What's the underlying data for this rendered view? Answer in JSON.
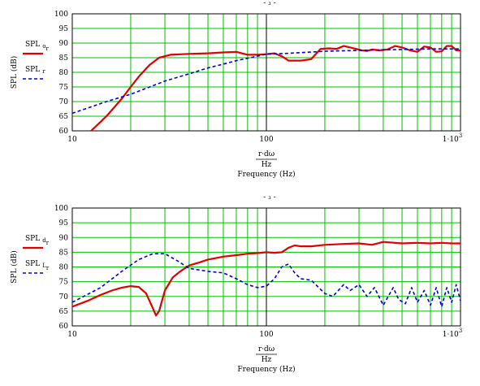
{
  "chart_data": [
    {
      "type": "line",
      "x_scale": "log",
      "xlim": [
        10,
        1000
      ],
      "ylim": [
        60,
        100
      ],
      "grid": true,
      "x_ticks": [
        "10",
        "100"
      ],
      "x_tick_last": {
        "base": "1·10",
        "exp": "3"
      },
      "y_ticks": [
        "60",
        "65",
        "70",
        "75",
        "80",
        "85",
        "90",
        "95",
        "100"
      ],
      "xlabel_top": "r·dω",
      "xlabel_mid": "Hz",
      "xlabel_bottom": "Frequency (Hz)",
      "ylabel": "SPL (dB)",
      "series": [
        {
          "name": "SPL",
          "name_sub": "o",
          "name_subsub": "r",
          "color": "#dd0000",
          "style": "solid",
          "x": [
            12.5,
            15,
            18,
            20,
            22,
            25,
            28,
            32,
            40,
            50,
            60,
            70,
            80,
            90,
            100,
            110,
            120,
            130,
            150,
            170,
            190,
            210,
            230,
            250,
            270,
            290,
            310,
            330,
            350,
            380,
            420,
            460,
            500,
            550,
            600,
            650,
            700,
            750,
            800,
            850,
            900,
            950,
            1000
          ],
          "y": [
            60,
            65,
            71,
            75,
            78.5,
            82.5,
            85,
            86,
            86.3,
            86.5,
            86.8,
            87,
            86,
            86,
            86.2,
            86.5,
            85.5,
            84,
            84,
            84.5,
            88,
            88.2,
            88,
            89,
            88.5,
            88,
            87.5,
            87.3,
            87.8,
            87.5,
            87.8,
            89,
            88.5,
            87.5,
            87,
            88.8,
            88.5,
            87,
            87.2,
            89,
            89,
            87.5,
            87.5
          ]
        },
        {
          "name": "SPL",
          "name_sub": "r",
          "name_subsub": "",
          "color": "#0000cc",
          "style": "dashed",
          "x": [
            10,
            15,
            20,
            30,
            40,
            50,
            60,
            70,
            80,
            100,
            130,
            200,
            300,
            500,
            700,
            1000
          ],
          "y": [
            66,
            70,
            72.5,
            77,
            79.5,
            81.5,
            82.8,
            84,
            84.8,
            86.2,
            86.5,
            87.2,
            87.5,
            87.8,
            88,
            88
          ]
        }
      ]
    },
    {
      "type": "line",
      "x_scale": "log",
      "xlim": [
        10,
        1000
      ],
      "ylim": [
        60,
        100
      ],
      "grid": true,
      "x_ticks": [
        "10",
        "100"
      ],
      "x_tick_last": {
        "base": "1·10",
        "exp": "3"
      },
      "y_ticks": [
        "60",
        "65",
        "70",
        "75",
        "80",
        "85",
        "90",
        "95",
        "100"
      ],
      "xlabel_top": "r·dω",
      "xlabel_mid": "Hz",
      "xlabel_bottom": "Frequency (Hz)",
      "ylabel": "SPL (dB)",
      "series": [
        {
          "name": "SPL",
          "name_sub": "d",
          "name_subsub": "r",
          "color": "#dd0000",
          "style": "solid",
          "x": [
            10,
            12,
            14,
            16,
            18,
            20,
            22,
            24,
            26,
            27,
            28,
            30,
            33,
            36,
            40,
            45,
            50,
            60,
            70,
            80,
            90,
            100,
            110,
            120,
            130,
            140,
            150,
            170,
            200,
            250,
            300,
            350,
            400,
            500,
            600,
            700,
            800,
            900,
            1000
          ],
          "y": [
            66.5,
            68.5,
            70.5,
            72,
            73,
            73.5,
            73.2,
            71,
            66,
            63.5,
            65,
            72,
            76.5,
            78.5,
            80.5,
            81.5,
            82.5,
            83.5,
            84,
            84.5,
            84.7,
            85,
            84.8,
            85,
            86.5,
            87.3,
            87,
            87,
            87.5,
            87.8,
            88,
            87.5,
            88.5,
            88,
            88.2,
            88,
            88.2,
            88,
            88
          ]
        },
        {
          "name": "SPL",
          "name_sub": "L",
          "name_subsub": "r",
          "color": "#0000cc",
          "style": "dashed",
          "x": [
            10,
            14,
            18,
            22,
            26,
            30,
            35,
            40,
            50,
            60,
            70,
            80,
            90,
            100,
            110,
            120,
            130,
            140,
            150,
            170,
            200,
            220,
            250,
            270,
            300,
            330,
            360,
            400,
            450,
            480,
            520,
            560,
            600,
            650,
            700,
            750,
            800,
            850,
            900,
            950,
            1000
          ],
          "y": [
            68,
            73,
            78.5,
            82.5,
            84.5,
            84.5,
            82,
            79.5,
            78.5,
            78,
            76,
            74,
            73,
            73.5,
            76,
            80,
            81,
            78,
            76,
            75.5,
            71,
            70,
            74,
            72,
            74,
            70,
            73,
            67,
            73,
            69,
            67.5,
            73,
            68,
            72,
            67,
            73,
            66.5,
            73,
            68,
            74,
            68.5
          ]
        }
      ]
    }
  ]
}
